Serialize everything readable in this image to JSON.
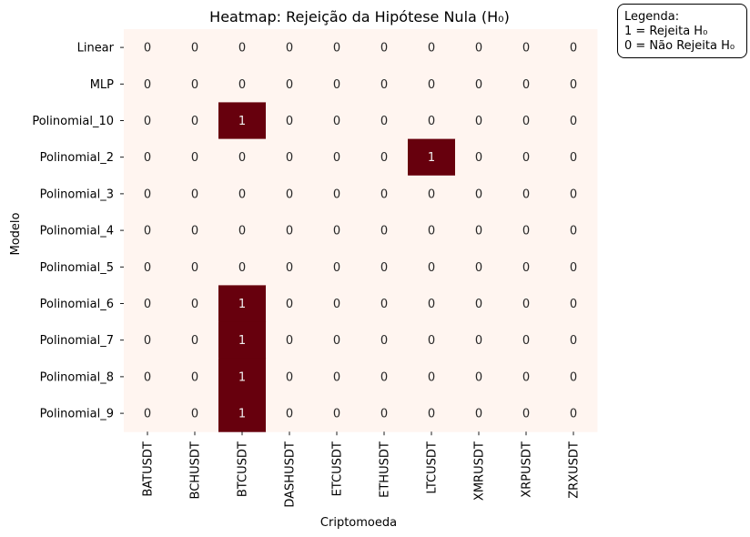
{
  "chart_data": {
    "type": "heatmap",
    "title": "Heatmap: Rejeição da Hipótese Nula (H₀)",
    "xlabel": "Criptomoeda",
    "ylabel": "Modelo",
    "x_categories": [
      "BATUSDT",
      "BCHUSDT",
      "BTCUSDT",
      "DASHUSDT",
      "ETCUSDT",
      "ETHUSDT",
      "LTCUSDT",
      "XMRUSDT",
      "XRPUSDT",
      "ZRXUSDT"
    ],
    "y_categories": [
      "Linear",
      "MLP",
      "Polinomial_10",
      "Polinomial_2",
      "Polinomial_3",
      "Polinomial_4",
      "Polinomial_5",
      "Polinomial_6",
      "Polinomial_7",
      "Polinomial_8",
      "Polinomial_9"
    ],
    "values": [
      [
        0,
        0,
        0,
        0,
        0,
        0,
        0,
        0,
        0,
        0
      ],
      [
        0,
        0,
        0,
        0,
        0,
        0,
        0,
        0,
        0,
        0
      ],
      [
        0,
        0,
        1,
        0,
        0,
        0,
        0,
        0,
        0,
        0
      ],
      [
        0,
        0,
        0,
        0,
        0,
        0,
        1,
        0,
        0,
        0
      ],
      [
        0,
        0,
        0,
        0,
        0,
        0,
        0,
        0,
        0,
        0
      ],
      [
        0,
        0,
        0,
        0,
        0,
        0,
        0,
        0,
        0,
        0
      ],
      [
        0,
        0,
        0,
        0,
        0,
        0,
        0,
        0,
        0,
        0
      ],
      [
        0,
        0,
        1,
        0,
        0,
        0,
        0,
        0,
        0,
        0
      ],
      [
        0,
        0,
        1,
        0,
        0,
        0,
        0,
        0,
        0,
        0
      ],
      [
        0,
        0,
        1,
        0,
        0,
        0,
        0,
        0,
        0,
        0
      ],
      [
        0,
        0,
        1,
        0,
        0,
        0,
        0,
        0,
        0,
        0
      ]
    ],
    "annotations": true,
    "colorbar": false,
    "colors": {
      "low": "#fff5f0",
      "high": "#67000d",
      "text_on_low": "#262626",
      "text_on_high": "#f0f0f0"
    }
  },
  "legend": {
    "title": "Legenda:",
    "lines": [
      "1 = Rejeita H₀",
      "0 = Não Rejeita H₀"
    ],
    "placement": "top-right"
  }
}
